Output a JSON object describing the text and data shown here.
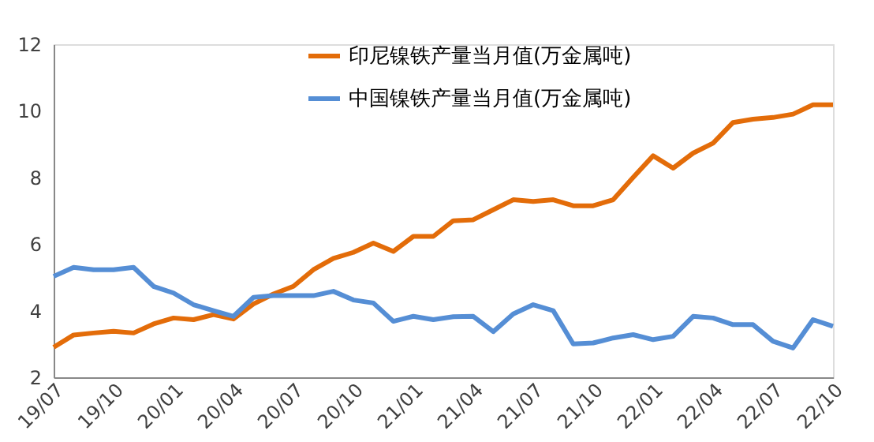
{
  "chart_data": {
    "type": "line",
    "categories": [
      "19/07",
      null,
      null,
      "19/10",
      null,
      null,
      "20/01",
      null,
      null,
      "20/04",
      null,
      null,
      "20/07",
      null,
      null,
      "20/10",
      null,
      null,
      "21/01",
      null,
      null,
      "21/04",
      null,
      null,
      "21/07",
      null,
      null,
      "21/10",
      null,
      null,
      "22/01",
      null,
      null,
      "22/04",
      null,
      null,
      "22/07",
      null,
      null,
      "22/10"
    ],
    "series": [
      {
        "name": "印尼镍铁产量当月值(万金属吨)",
        "color": "#e36c09",
        "values": [
          2.9,
          3.27,
          3.33,
          3.38,
          3.33,
          3.6,
          3.78,
          3.73,
          3.88,
          3.75,
          4.2,
          4.5,
          4.73,
          5.23,
          5.57,
          5.75,
          6.03,
          5.78,
          6.23,
          6.23,
          6.7,
          6.73,
          7.03,
          7.33,
          7.28,
          7.33,
          7.15,
          7.15,
          7.33,
          8.0,
          8.65,
          8.28,
          8.73,
          9.03,
          9.65,
          9.75,
          9.8,
          9.9,
          10.18,
          10.18
        ]
      },
      {
        "name": "中国镍铁产量当月值(万金属吨)",
        "color": "#558ed5",
        "values": [
          5.03,
          5.3,
          5.23,
          5.23,
          5.3,
          4.73,
          4.53,
          4.18,
          4.0,
          3.83,
          4.4,
          4.45,
          4.45,
          4.45,
          4.58,
          4.32,
          4.23,
          3.68,
          3.83,
          3.73,
          3.82,
          3.83,
          3.37,
          3.9,
          4.18,
          4.0,
          3.0,
          3.03,
          3.18,
          3.28,
          3.13,
          3.23,
          3.83,
          3.78,
          3.58,
          3.58,
          3.08,
          2.88,
          3.73,
          3.53
        ]
      }
    ],
    "ylim": [
      2,
      12
    ],
    "yticks": [
      2,
      4,
      6,
      8,
      10,
      12
    ],
    "legend": "top",
    "grid": false
  }
}
